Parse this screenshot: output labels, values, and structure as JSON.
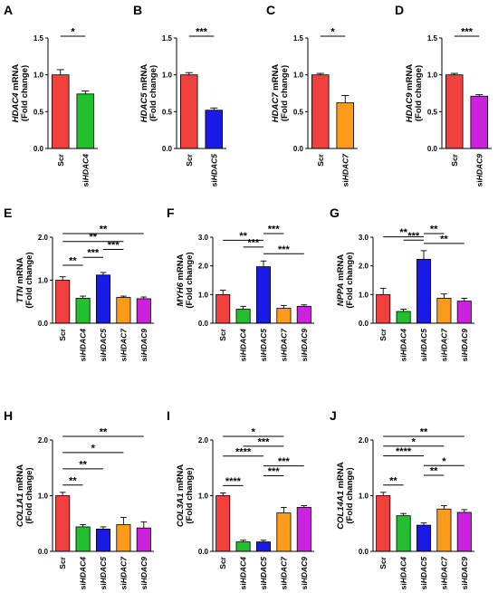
{
  "colors": {
    "Scr": "#f2403f",
    "siHDAC4": "#22c02e",
    "siHDAC5": "#1a1ae6",
    "siHDAC7": "#ff9a1a",
    "siHDAC9": "#cc22dd"
  },
  "chart_data": [
    {
      "panel": "A",
      "type": "bar",
      "gene": "HDAC4",
      "ylabel_suffix": "mRNA",
      "ylabel2": "(Fold change)",
      "categories": [
        "Scr",
        "siHDAC4"
      ],
      "values": [
        1.0,
        0.74
      ],
      "errors": [
        0.07,
        0.04
      ],
      "ylim": [
        0,
        1.5
      ],
      "yticks": [
        "0.0",
        "0.5",
        "1.0",
        "1.5"
      ],
      "significance": [
        {
          "from": 0,
          "to": 1,
          "label": "*"
        }
      ]
    },
    {
      "panel": "B",
      "type": "bar",
      "gene": "HDAC5",
      "ylabel_suffix": "mRNA",
      "ylabel2": "(Fold change)",
      "categories": [
        "Scr",
        "siHDAC5"
      ],
      "values": [
        1.0,
        0.52
      ],
      "errors": [
        0.03,
        0.03
      ],
      "ylim": [
        0,
        1.5
      ],
      "yticks": [
        "0.0",
        "0.5",
        "1.0",
        "1.5"
      ],
      "significance": [
        {
          "from": 0,
          "to": 1,
          "label": "***"
        }
      ]
    },
    {
      "panel": "C",
      "type": "bar",
      "gene": "HDAC7",
      "ylabel_suffix": "mRNA",
      "ylabel2": "(Fold change)",
      "categories": [
        "Scr",
        "siHDAC7"
      ],
      "values": [
        1.0,
        0.62
      ],
      "errors": [
        0.02,
        0.1
      ],
      "ylim": [
        0,
        1.5
      ],
      "yticks": [
        "0.0",
        "0.5",
        "1.0",
        "1.5"
      ],
      "significance": [
        {
          "from": 0,
          "to": 1,
          "label": "*"
        }
      ]
    },
    {
      "panel": "D",
      "type": "bar",
      "gene": "HDAC9",
      "ylabel_suffix": "mRNA",
      "ylabel2": "(Fold change)",
      "categories": [
        "Scr",
        "siHDAC9"
      ],
      "values": [
        1.0,
        0.71
      ],
      "errors": [
        0.02,
        0.02
      ],
      "ylim": [
        0,
        1.5
      ],
      "yticks": [
        "0.0",
        "0.5",
        "1.0",
        "1.5"
      ],
      "significance": [
        {
          "from": 0,
          "to": 1,
          "label": "***"
        }
      ]
    },
    {
      "panel": "E",
      "type": "bar",
      "gene": "TTN",
      "ylabel_suffix": "mRNA",
      "ylabel2": "(Fold change)",
      "categories": [
        "Scr",
        "siHDAC4",
        "siHDAC5",
        "siHDAC7",
        "siHDAC9"
      ],
      "values": [
        1.0,
        0.58,
        1.12,
        0.6,
        0.57
      ],
      "errors": [
        0.08,
        0.05,
        0.06,
        0.03,
        0.04
      ],
      "ylim": [
        0,
        2.0
      ],
      "yticks": [
        "0.0",
        "1.0",
        "2.0"
      ],
      "significance": [
        {
          "from": 0,
          "to": 1,
          "label": "**"
        },
        {
          "from": 1,
          "to": 2,
          "label": "***"
        },
        {
          "from": 2,
          "to": 3,
          "label": "***"
        },
        {
          "from": 0,
          "to": 3,
          "label": "**"
        },
        {
          "from": 0,
          "to": 4,
          "label": "**"
        }
      ]
    },
    {
      "panel": "F",
      "type": "bar",
      "gene": "MYH6",
      "ylabel_suffix": "mRNA",
      "ylabel2": "(Fold change)",
      "categories": [
        "Scr",
        "siHDAC4",
        "siHDAC5",
        "siHDAC7",
        "siHDAC9"
      ],
      "values": [
        1.0,
        0.49,
        1.97,
        0.52,
        0.59
      ],
      "errors": [
        0.15,
        0.1,
        0.2,
        0.1,
        0.05
      ],
      "ylim": [
        0,
        3.0
      ],
      "yticks": [
        "0.0",
        "1.0",
        "2.0",
        "3.0"
      ],
      "significance": [
        {
          "from": 2,
          "to": 4,
          "label": "***"
        },
        {
          "from": 1,
          "to": 2,
          "label": "***"
        },
        {
          "from": 0,
          "to": 2,
          "label": "**"
        },
        {
          "from": 2,
          "to": 3,
          "label": "***"
        }
      ]
    },
    {
      "panel": "G",
      "type": "bar",
      "gene": "NPPA",
      "ylabel_suffix": "mRNA",
      "ylabel2": "(Fold change)",
      "categories": [
        "Scr",
        "siHDAC4",
        "siHDAC5",
        "siHDAC7",
        "siHDAC9"
      ],
      "values": [
        1.0,
        0.41,
        2.23,
        0.87,
        0.77
      ],
      "errors": [
        0.22,
        0.08,
        0.3,
        0.15,
        0.1
      ],
      "ylim": [
        0,
        3.0
      ],
      "yticks": [
        "0.0",
        "1.0",
        "2.0",
        "3.0"
      ],
      "significance": [
        {
          "from": 2,
          "to": 4,
          "label": "**"
        },
        {
          "from": 1,
          "to": 2,
          "label": "***"
        },
        {
          "from": 0,
          "to": 2,
          "label": "**"
        },
        {
          "from": 2,
          "to": 3,
          "label": "**"
        }
      ]
    },
    {
      "panel": "H",
      "type": "bar",
      "gene": "COL1A1",
      "ylabel_suffix": "mRNA",
      "ylabel2": "(Fold change)",
      "categories": [
        "Scr",
        "siHDAC4",
        "siHDAC5",
        "siHDAC7",
        "siHDAC9"
      ],
      "values": [
        1.0,
        0.44,
        0.4,
        0.48,
        0.42
      ],
      "errors": [
        0.06,
        0.04,
        0.04,
        0.13,
        0.11
      ],
      "ylim": [
        0,
        2.0
      ],
      "yticks": [
        "0.0",
        "1.0",
        "2.0"
      ],
      "significance": [
        {
          "from": 0,
          "to": 1,
          "label": "**"
        },
        {
          "from": 0,
          "to": 2,
          "label": "**"
        },
        {
          "from": 0,
          "to": 3,
          "label": "*"
        },
        {
          "from": 0,
          "to": 4,
          "label": "**"
        }
      ]
    },
    {
      "panel": "I",
      "type": "bar",
      "gene": "COL3A1",
      "ylabel_suffix": "mRNA",
      "ylabel2": "(Fold change)",
      "categories": [
        "Scr",
        "siHDAC4",
        "siHDAC5",
        "siHDAC7",
        "siHDAC9"
      ],
      "values": [
        1.0,
        0.17,
        0.17,
        0.69,
        0.79
      ],
      "errors": [
        0.05,
        0.03,
        0.03,
        0.1,
        0.03
      ],
      "ylim": [
        0,
        2.0
      ],
      "yticks": [
        "0.0",
        "1.0",
        "2.0"
      ],
      "significance": [
        {
          "from": 0,
          "to": 1,
          "label": "****"
        },
        {
          "from": 2,
          "to": 3,
          "label": "***"
        },
        {
          "from": 2,
          "to": 4,
          "label": "***"
        },
        {
          "from": 0,
          "to": 2,
          "label": "****"
        },
        {
          "from": 1,
          "to": 3,
          "label": "***"
        },
        {
          "from": 0,
          "to": 3,
          "label": "*"
        }
      ]
    },
    {
      "panel": "J",
      "type": "bar",
      "gene": "COL14A1",
      "ylabel_suffix": "mRNA",
      "ylabel2": "(Fold change)",
      "categories": [
        "Scr",
        "siHDAC4",
        "siHDAC5",
        "siHDAC7",
        "siHDAC9"
      ],
      "values": [
        1.0,
        0.64,
        0.47,
        0.76,
        0.7
      ],
      "errors": [
        0.06,
        0.04,
        0.04,
        0.06,
        0.05
      ],
      "ylim": [
        0,
        2.0
      ],
      "yticks": [
        "0.0",
        "1.0",
        "2.0"
      ],
      "significance": [
        {
          "from": 0,
          "to": 1,
          "label": "**"
        },
        {
          "from": 2,
          "to": 3,
          "label": "**"
        },
        {
          "from": 2,
          "to": 4,
          "label": "*"
        },
        {
          "from": 0,
          "to": 2,
          "label": "****"
        },
        {
          "from": 0,
          "to": 3,
          "label": "*"
        },
        {
          "from": 0,
          "to": 4,
          "label": "**"
        }
      ]
    }
  ]
}
